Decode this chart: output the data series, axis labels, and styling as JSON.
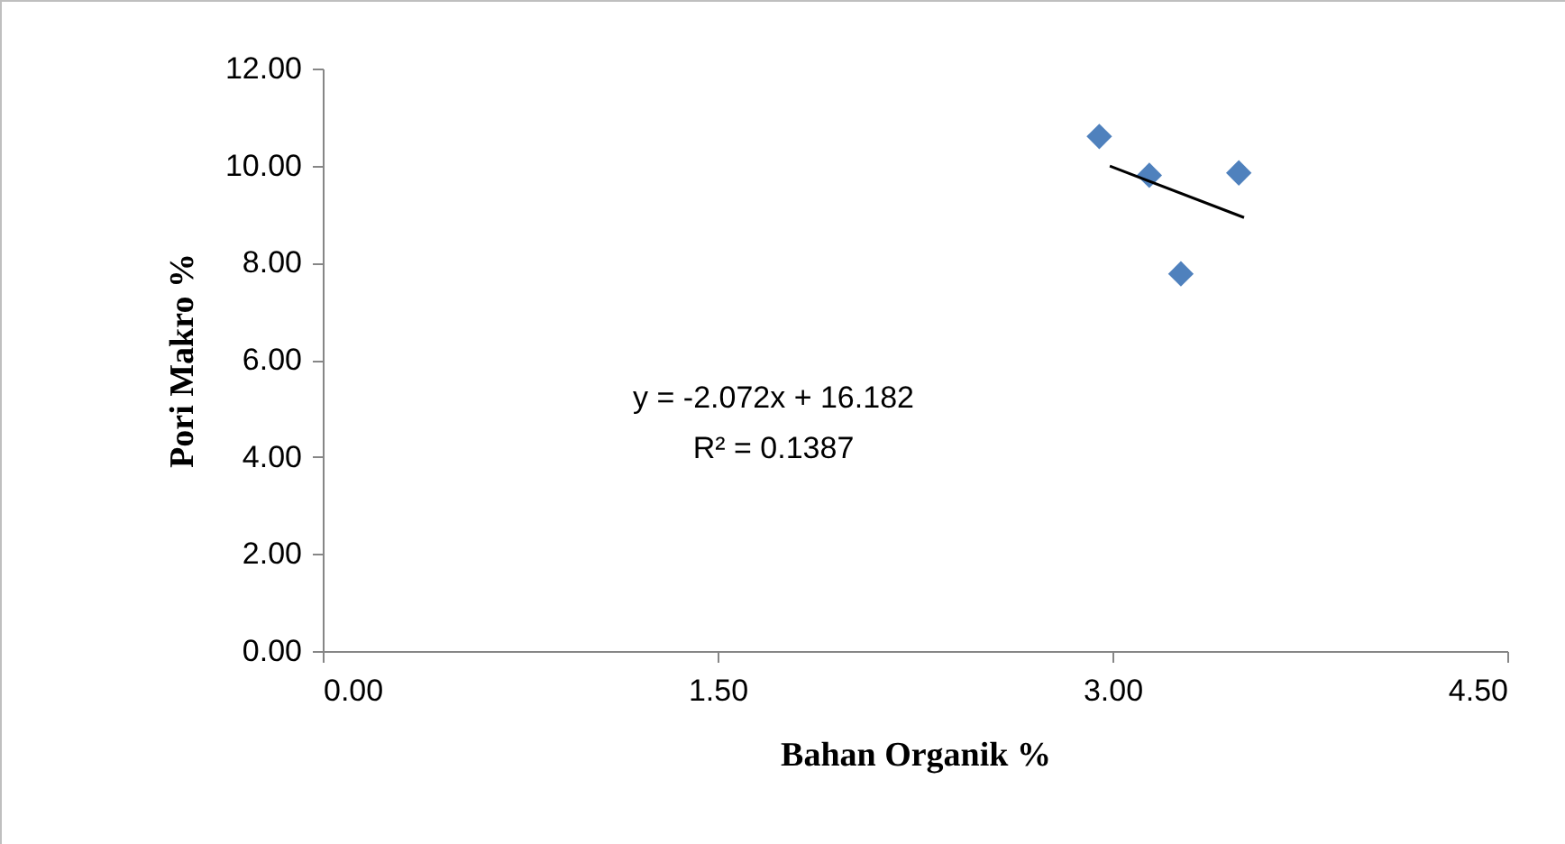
{
  "chart_data": {
    "type": "scatter",
    "xlabel": "Bahan Organik %",
    "ylabel": "Pori Makro %",
    "series": [
      {
        "color": "#4f81bd",
        "marker": "diamond",
        "x": [
          2.95,
          3.14,
          3.26,
          3.48
        ],
        "values": [
          10.6,
          9.8,
          7.77,
          9.85
        ]
      },
      {
        "type": "line",
        "color": "#000000",
        "line_style": "solid",
        "x": [
          2.99,
          3.5
        ],
        "values": [
          9.99,
          8.93
        ]
      }
    ],
    "xlim": [
      0,
      4.5
    ],
    "ylim": [
      0,
      12
    ],
    "xticks": [
      {
        "value": 0,
        "label": "0.00"
      },
      {
        "value": 1.5,
        "label": "1.50"
      },
      {
        "value": 3,
        "label": "3.00"
      },
      {
        "value": 4.5,
        "label": "4.50"
      }
    ],
    "yticks": [
      {
        "value": 0,
        "label": "0.00"
      },
      {
        "value": 2,
        "label": "2.00"
      },
      {
        "value": 4,
        "label": "4.00"
      },
      {
        "value": 6,
        "label": "6.00"
      },
      {
        "value": 8,
        "label": "8.00"
      },
      {
        "value": 10,
        "label": "10.00"
      },
      {
        "value": 12,
        "label": "12.00"
      }
    ],
    "annotations": [
      "y = -2.072x + 16.182",
      "R² = 0.1387"
    ],
    "grid": false
  }
}
